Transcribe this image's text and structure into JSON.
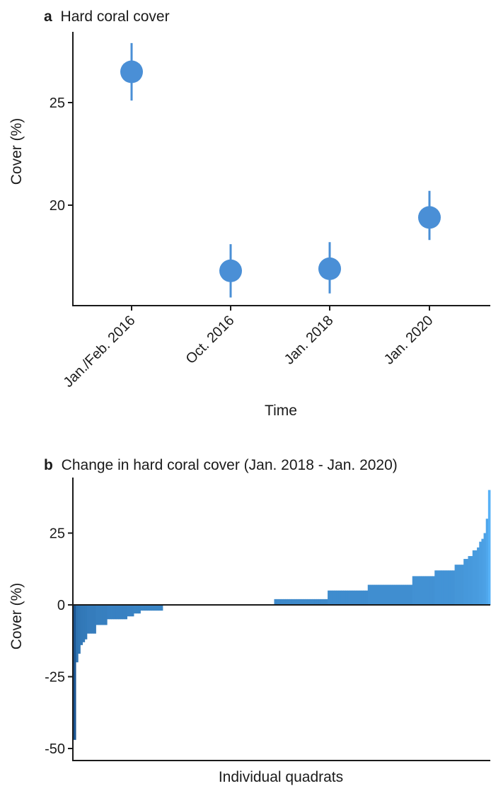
{
  "chart_data": [
    {
      "type": "scatter",
      "panel": "a",
      "title": "Hard coral cover",
      "xlabel": "Time",
      "ylabel": "Cover (%)",
      "categories": [
        "Jan./Feb. 2016",
        "Oct. 2016",
        "Jan. 2018",
        "Jan. 2020"
      ],
      "values": [
        26.5,
        16.8,
        16.9,
        19.4
      ],
      "error_low": [
        25.1,
        15.5,
        15.7,
        18.3
      ],
      "error_high": [
        27.9,
        18.1,
        18.2,
        20.7
      ],
      "yticks": [
        20,
        25
      ],
      "ylim": [
        12.5,
        28.6
      ],
      "grid": false,
      "color": "#4a8fd6"
    },
    {
      "type": "bar",
      "panel": "b",
      "title": "Change in hard coral cover (Jan. 2018 - Jan. 2020)",
      "xlabel": "Individual quadrats",
      "ylabel": "Cover (%)",
      "yticks": [
        -50,
        -25,
        0,
        25
      ],
      "ylim": [
        -58,
        44
      ],
      "grid": false,
      "color_low": "#1c5590",
      "color_high": "#56b1f7",
      "values": [
        -47,
        -20,
        -17,
        -14,
        -13,
        -12,
        -10,
        -10,
        -10,
        -10,
        -7,
        -7,
        -7,
        -7,
        -7,
        -5,
        -5,
        -5,
        -5,
        -5,
        -5,
        -5,
        -5,
        -5,
        -4,
        -4,
        -4,
        -3,
        -3,
        -3,
        -2,
        -2,
        -2,
        -2,
        -2,
        -2,
        -2,
        -2,
        -2,
        -2,
        0,
        0,
        0,
        0,
        0,
        0,
        0,
        0,
        0,
        0,
        0,
        0,
        0,
        0,
        0,
        0,
        0,
        0,
        0,
        0,
        0,
        0,
        0,
        0,
        0,
        0,
        0,
        0,
        0,
        0,
        0,
        0,
        0,
        0,
        0,
        0,
        0,
        0,
        0,
        0,
        0,
        0,
        0,
        0,
        0,
        0,
        0,
        0,
        0,
        0,
        2,
        2,
        2,
        2,
        2,
        2,
        2,
        2,
        2,
        2,
        2,
        2,
        2,
        2,
        2,
        2,
        2,
        2,
        2,
        2,
        2,
        2,
        2,
        2,
        5,
        5,
        5,
        5,
        5,
        5,
        5,
        5,
        5,
        5,
        5,
        5,
        5,
        5,
        5,
        5,
        5,
        5,
        7,
        7,
        7,
        7,
        7,
        7,
        7,
        7,
        7,
        7,
        7,
        7,
        7,
        7,
        7,
        7,
        7,
        7,
        7,
        7,
        10,
        10,
        10,
        10,
        10,
        10,
        10,
        10,
        10,
        10,
        12,
        12,
        12,
        12,
        12,
        12,
        12,
        12,
        12,
        14,
        14,
        14,
        14,
        16,
        16,
        17,
        17,
        19,
        19,
        20,
        22,
        23,
        25,
        30,
        40
      ]
    }
  ]
}
